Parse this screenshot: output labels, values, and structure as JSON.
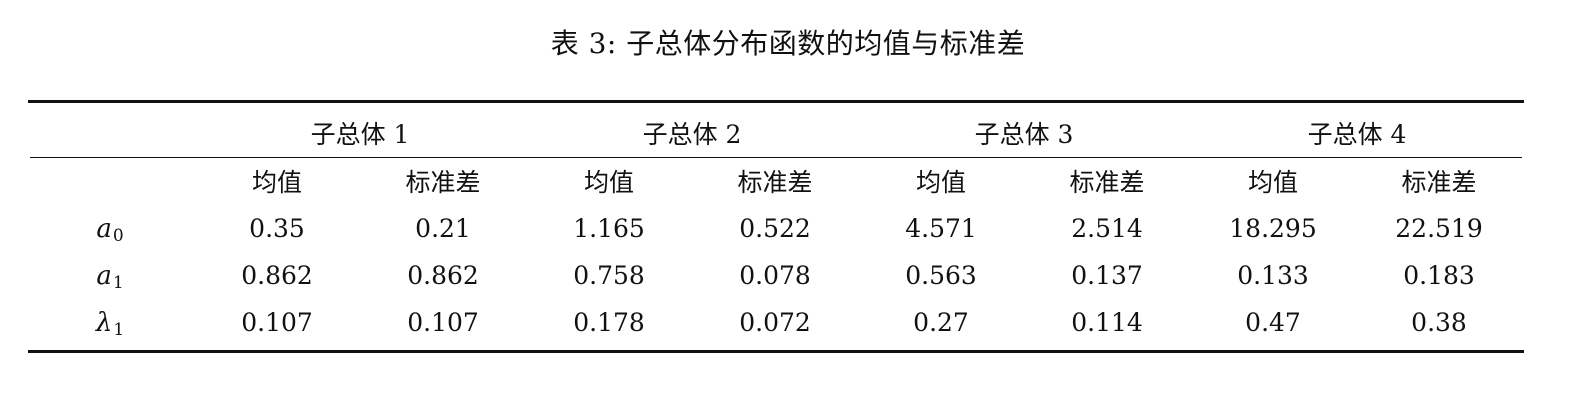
{
  "caption": "表 3: 子总体分布函数的均值与标准差",
  "groups": [
    "子总体 1",
    "子总体 2",
    "子总体 3",
    "子总体 4"
  ],
  "subheaders": [
    "均值",
    "标准差",
    "均值",
    "标准差",
    "均值",
    "标准差",
    "均值",
    "标准差"
  ],
  "rows": [
    {
      "symbol": "a",
      "subscript": "0",
      "values": [
        "0.35",
        "0.21",
        "1.165",
        "0.522",
        "4.571",
        "2.514",
        "18.295",
        "22.519"
      ]
    },
    {
      "symbol": "a",
      "subscript": "1",
      "values": [
        "0.862",
        "0.862",
        "0.758",
        "0.078",
        "0.563",
        "0.137",
        "0.133",
        "0.183"
      ]
    },
    {
      "symbol": "λ",
      "subscript": "1",
      "values": [
        "0.107",
        "0.107",
        "0.178",
        "0.072",
        "0.27",
        "0.114",
        "0.47",
        "0.38"
      ]
    }
  ]
}
